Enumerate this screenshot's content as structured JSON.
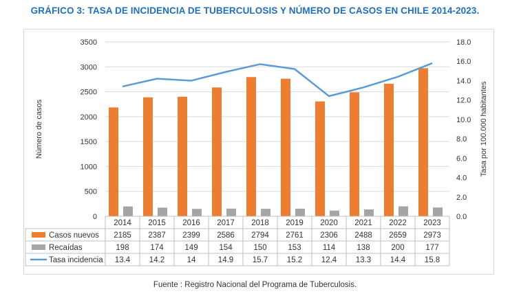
{
  "title": "GRÁFICO 3: TASA DE INCIDENCIA DE TUBERCULOSIS Y NÚMERO DE CASOS EN CHILE 2014-2023.",
  "source": "Fuente : Registro Nacional del Programa de Tuberculosis.",
  "chart_data": {
    "type": "bar",
    "categories": [
      "2014",
      "2015",
      "2016",
      "2017",
      "2018",
      "2019",
      "2020",
      "2021",
      "2022",
      "2023"
    ],
    "ylabel": "Número de casos",
    "y2label": "Tasa por 100.000 habitantes",
    "ylim": [
      0,
      3500
    ],
    "y2lim": [
      0,
      18
    ],
    "yticks": [
      "0",
      "500",
      "1000",
      "1500",
      "2000",
      "2500",
      "3000",
      "3500"
    ],
    "y2ticks": [
      "0.0",
      "2.0",
      "4.0",
      "6.0",
      "8.0",
      "10.0",
      "12.0",
      "14.0",
      "16.0",
      "18.0"
    ],
    "grid": true,
    "legend": "data-table-below",
    "series": [
      {
        "name": "Casos nuevos",
        "type": "bar",
        "axis": "left",
        "color": "#ed7d31",
        "values": [
          2185,
          2387,
          2399,
          2586,
          2794,
          2761,
          2306,
          2488,
          2659,
          2973
        ],
        "labels": [
          "2185",
          "2387",
          "2399",
          "2586",
          "2794",
          "2761",
          "2306",
          "2488",
          "2659",
          "2973"
        ]
      },
      {
        "name": "Recaídas",
        "type": "bar",
        "axis": "left",
        "color": "#a5a5a5",
        "values": [
          198,
          174,
          149,
          154,
          150,
          153,
          114,
          138,
          200,
          177
        ],
        "labels": [
          "198",
          "174",
          "149",
          "154",
          "150",
          "153",
          "114",
          "138",
          "200",
          "177"
        ]
      },
      {
        "name": "Tasa incidencia",
        "type": "line",
        "axis": "right",
        "color": "#5b9bd5",
        "values": [
          13.4,
          14.2,
          14,
          14.9,
          15.7,
          15.2,
          12.4,
          13.3,
          14.4,
          15.8
        ],
        "labels": [
          "13.4",
          "14.2",
          "14",
          "14.9",
          "15.7",
          "15.2",
          "12.4",
          "13.3",
          "14.4",
          "15.8"
        ]
      }
    ]
  }
}
